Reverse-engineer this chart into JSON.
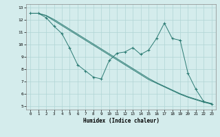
{
  "xlabel": "Humidex (Indice chaleur)",
  "xlim": [
    -0.5,
    23.5
  ],
  "ylim": [
    4.7,
    13.3
  ],
  "yticks": [
    5,
    6,
    7,
    8,
    9,
    10,
    11,
    12,
    13
  ],
  "xticks": [
    0,
    1,
    2,
    3,
    4,
    5,
    6,
    7,
    8,
    9,
    10,
    11,
    12,
    13,
    14,
    15,
    16,
    17,
    18,
    19,
    20,
    21,
    22,
    23
  ],
  "bg_color": "#d4ecec",
  "line_color": "#2a7a72",
  "grid_color": "#b0d4d4",
  "series": [
    {
      "x": [
        0,
        1,
        2,
        3,
        4,
        5,
        6,
        7,
        8,
        9,
        10,
        11,
        12,
        13,
        14,
        15,
        16,
        17,
        18,
        19,
        20,
        21,
        22,
        23
      ],
      "y": [
        12.55,
        12.55,
        12.35,
        11.95,
        11.55,
        11.15,
        10.75,
        10.35,
        9.95,
        9.55,
        9.15,
        8.75,
        8.35,
        7.95,
        7.55,
        7.15,
        6.85,
        6.55,
        6.25,
        5.95,
        5.7,
        5.5,
        5.3,
        5.15
      ],
      "markers": false
    },
    {
      "x": [
        0,
        1,
        2,
        3,
        4,
        5,
        6,
        7,
        8,
        9,
        10,
        11,
        12,
        13,
        14,
        15,
        16,
        17,
        18,
        19,
        20,
        21,
        22,
        23
      ],
      "y": [
        12.55,
        12.55,
        12.38,
        12.05,
        11.65,
        11.25,
        10.85,
        10.45,
        10.05,
        9.65,
        9.25,
        8.85,
        8.45,
        8.05,
        7.65,
        7.25,
        6.9,
        6.6,
        6.3,
        6.0,
        5.75,
        5.55,
        5.35,
        5.2
      ],
      "markers": false
    },
    {
      "x": [
        0,
        1,
        2,
        3,
        4,
        5,
        6,
        7,
        8,
        9,
        10,
        11,
        12,
        13,
        14,
        15,
        16,
        17,
        18,
        19,
        20,
        21,
        22,
        23
      ],
      "y": [
        12.55,
        12.55,
        12.2,
        11.5,
        10.9,
        9.7,
        8.35,
        7.85,
        7.35,
        7.2,
        8.7,
        9.3,
        9.4,
        9.75,
        9.2,
        9.55,
        10.5,
        11.75,
        10.5,
        10.35,
        7.65,
        6.35,
        5.35,
        5.15
      ],
      "markers": true
    }
  ]
}
